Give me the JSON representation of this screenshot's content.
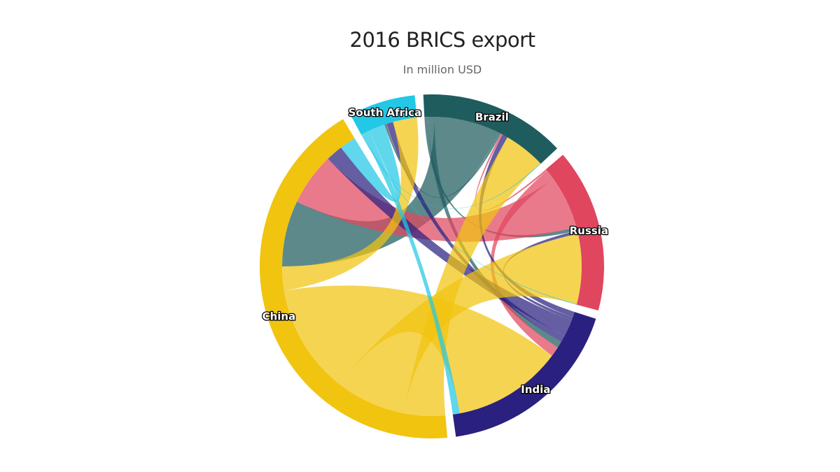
{
  "chart_data": {
    "type": "chord",
    "title": "2016 BRICS export",
    "subtitle": "In million USD",
    "nodes": [
      {
        "name": "Brazil",
        "color": "#1f5c5e"
      },
      {
        "name": "Russia",
        "color": "#e0465e"
      },
      {
        "name": "India",
        "color": "#2a2080"
      },
      {
        "name": "China",
        "color": "#f1c40f"
      },
      {
        "name": "South Africa",
        "color": "#22c8e5"
      }
    ],
    "flows": [
      {
        "from": "Brazil",
        "to": "Russia",
        "value": 1900
      },
      {
        "from": "Brazil",
        "to": "India",
        "value": 3500
      },
      {
        "from": "Brazil",
        "to": "China",
        "value": 35100
      },
      {
        "from": "Brazil",
        "to": "South Africa",
        "value": 1000
      },
      {
        "from": "Russia",
        "to": "Brazil",
        "value": 1000
      },
      {
        "from": "Russia",
        "to": "India",
        "value": 5300
      },
      {
        "from": "Russia",
        "to": "China",
        "value": 28000
      },
      {
        "from": "Russia",
        "to": "South Africa",
        "value": 200
      },
      {
        "from": "India",
        "to": "Brazil",
        "value": 3000
      },
      {
        "from": "India",
        "to": "Russia",
        "value": 1700
      },
      {
        "from": "India",
        "to": "China",
        "value": 9000
      },
      {
        "from": "India",
        "to": "South Africa",
        "value": 3500
      },
      {
        "from": "China",
        "to": "Brazil",
        "value": 22000
      },
      {
        "from": "China",
        "to": "Russia",
        "value": 37300
      },
      {
        "from": "China",
        "to": "India",
        "value": 58300
      },
      {
        "from": "China",
        "to": "South Africa",
        "value": 12800
      },
      {
        "from": "South Africa",
        "to": "Brazil",
        "value": 400
      },
      {
        "from": "South Africa",
        "to": "Russia",
        "value": 400
      },
      {
        "from": "South Africa",
        "to": "India",
        "value": 3800
      },
      {
        "from": "South Africa",
        "to": "China",
        "value": 8700
      }
    ]
  }
}
